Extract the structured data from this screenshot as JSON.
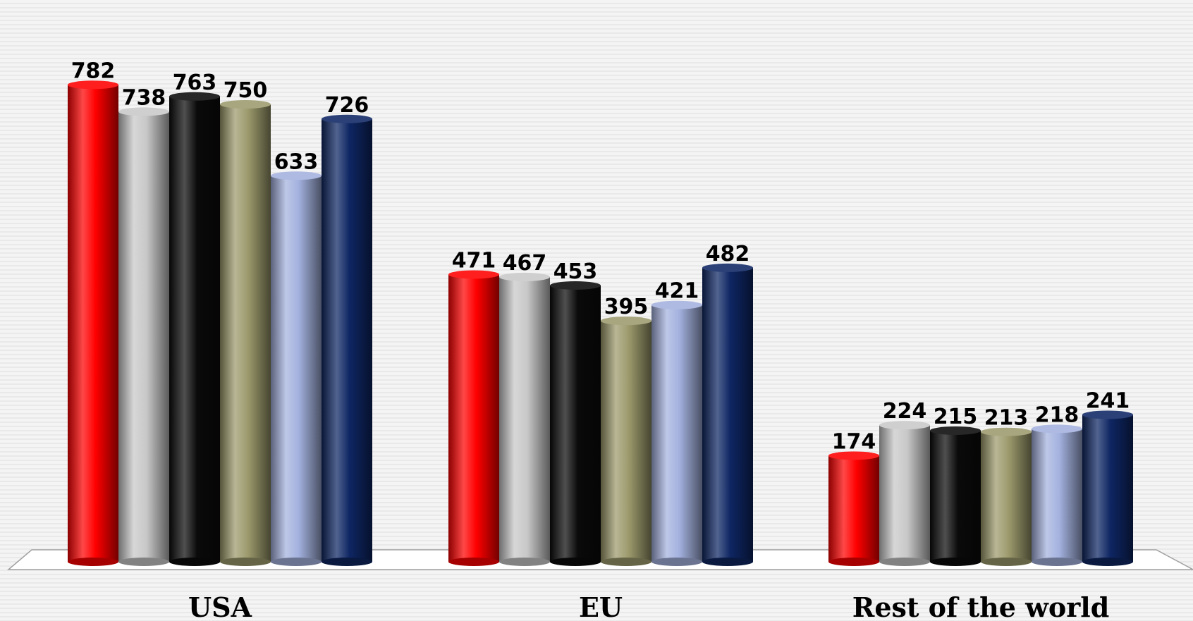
{
  "chart_data": {
    "type": "bar",
    "categories": [
      "USA",
      "EU",
      "Rest of the world"
    ],
    "series": [
      {
        "color": "#ff0000",
        "values": [
          782,
          471,
          174
        ]
      },
      {
        "color": "#c8c8c8",
        "values": [
          738,
          467,
          224
        ]
      },
      {
        "color": "#0a0a0a",
        "values": [
          763,
          453,
          215
        ]
      },
      {
        "color": "#9c9a6c",
        "values": [
          750,
          395,
          213
        ]
      },
      {
        "color": "#a3b1de",
        "values": [
          633,
          421,
          218
        ]
      },
      {
        "color": "#0e2663",
        "values": [
          726,
          482,
          241
        ]
      }
    ],
    "title": "",
    "xlabel": "",
    "ylabel": "",
    "ylim": [
      0,
      800
    ],
    "grid": false,
    "legend": "none",
    "data_labels": true,
    "style": "3d-cylinder"
  }
}
